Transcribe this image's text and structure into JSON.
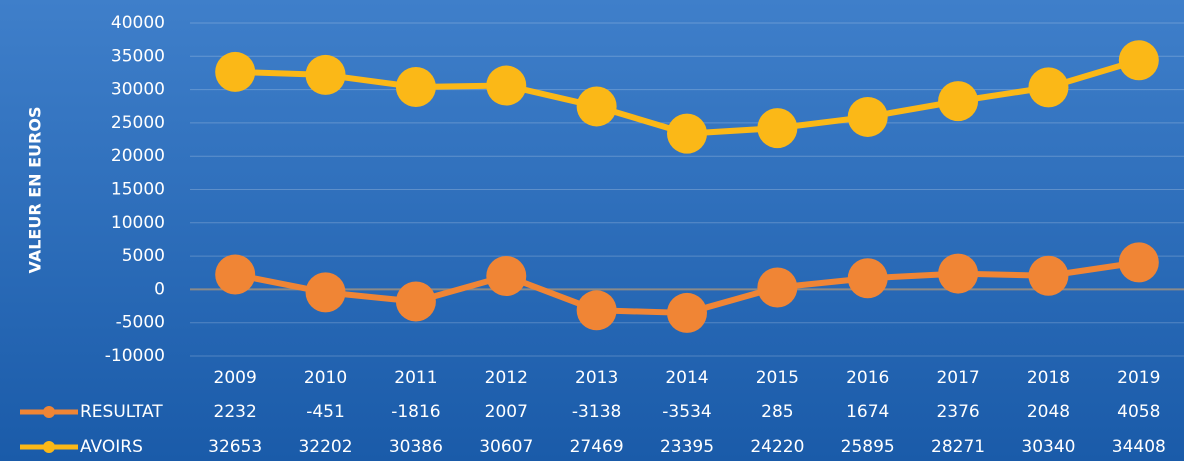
{
  "chart_data": {
    "type": "line",
    "y_axis_label": "VALEUR EN EUROS",
    "categories": [
      "2009",
      "2010",
      "2011",
      "2012",
      "2013",
      "2014",
      "2015",
      "2016",
      "2017",
      "2018",
      "2019"
    ],
    "series": [
      {
        "name": "RESULTAT",
        "color": "#f08535",
        "values": [
          2232,
          -451,
          -1816,
          2007,
          -3138,
          -3534,
          285,
          1674,
          2376,
          2048,
          4058
        ]
      },
      {
        "name": "AVOIRS",
        "color": "#fbb817",
        "values": [
          32653,
          32202,
          30386,
          30607,
          27469,
          23395,
          24220,
          25895,
          28271,
          30340,
          34408
        ]
      }
    ],
    "ylim": [
      -10000,
      40000
    ],
    "yticks": [
      40000,
      35000,
      30000,
      25000,
      20000,
      15000,
      10000,
      5000,
      0,
      -5000,
      -10000
    ],
    "grid": true,
    "data_table": true
  }
}
